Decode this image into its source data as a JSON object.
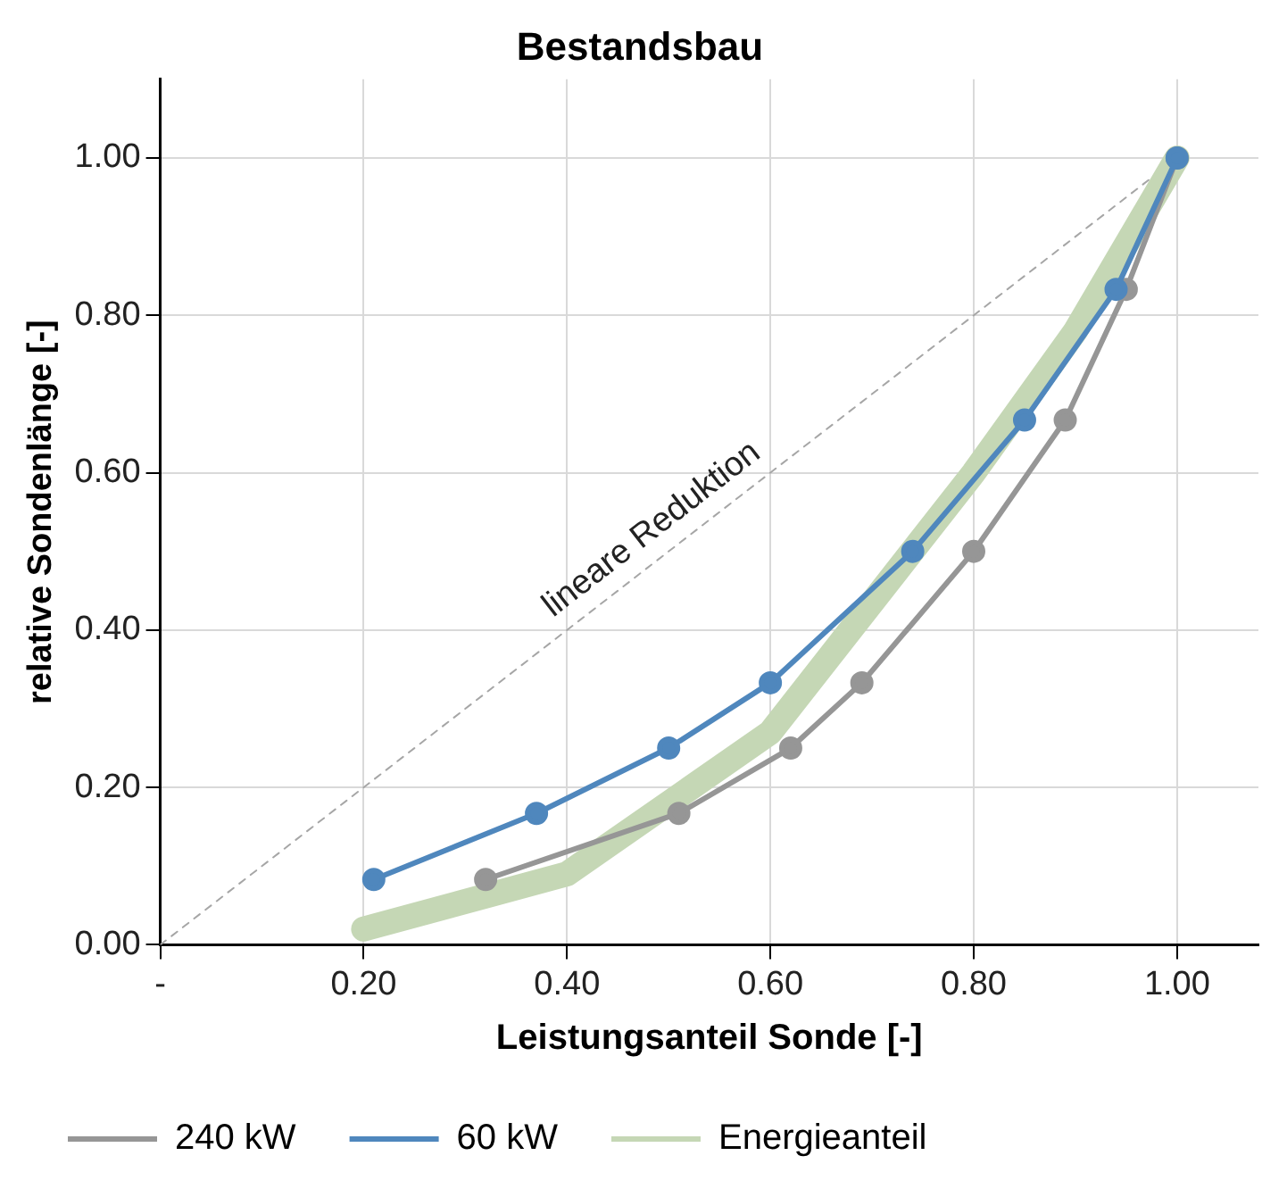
{
  "chart_data": {
    "type": "line",
    "title": "Bestandsbau",
    "xlabel": "Leistungsanteil Sonde [-]",
    "ylabel": "relative Sondenlänge [-]",
    "xlim": [
      0,
      1.08
    ],
    "xticks": [
      {
        "value": 0,
        "label": "-"
      },
      {
        "value": 0.2,
        "label": "0.20"
      },
      {
        "value": 0.4,
        "label": "0.40"
      },
      {
        "value": 0.6,
        "label": "0.60"
      },
      {
        "value": 0.8,
        "label": "0.80"
      },
      {
        "value": 1,
        "label": "1.00"
      }
    ],
    "ylim": [
      0,
      1.1
    ],
    "yticks": [
      {
        "value": 0,
        "label": "0.00"
      },
      {
        "value": 0.2,
        "label": "0.20"
      },
      {
        "value": 0.4,
        "label": "0.40"
      },
      {
        "value": 0.6,
        "label": "0.60"
      },
      {
        "value": 0.8,
        "label": "0.80"
      },
      {
        "value": 1,
        "label": "1.00"
      }
    ],
    "grid": true,
    "legend": "bottom",
    "marker": "circle",
    "series": [
      {
        "name": "240 kW",
        "color": "#969696",
        "x": [
          0.32,
          0.51,
          0.62,
          0.69,
          0.8,
          0.89,
          0.95,
          1.0
        ],
        "values": [
          0.083,
          0.167,
          0.25,
          0.333,
          0.5,
          0.667,
          0.833,
          1.0
        ]
      },
      {
        "name": "60 kW",
        "color": "#4f87bd",
        "x": [
          0.21,
          0.37,
          0.5,
          0.6,
          0.74,
          0.85,
          0.94,
          1.0
        ],
        "values": [
          0.083,
          0.167,
          0.25,
          0.333,
          0.5,
          0.667,
          0.833,
          1.0
        ]
      },
      {
        "name": "Energieanteil",
        "color": "#c5d7b5",
        "marker": "none",
        "x": [
          0.2,
          0.4,
          0.6,
          0.8,
          0.9,
          1.0
        ],
        "values": [
          0.02,
          0.09,
          0.27,
          0.6,
          0.78,
          1.0
        ]
      },
      {
        "color": "#a6a6a6",
        "marker": "none",
        "line_style": "dashed",
        "x": [
          0,
          1
        ],
        "values": [
          0,
          1
        ]
      }
    ],
    "annotations": [
      {
        "text": "lineare Reduktion",
        "x": 0.5,
        "y": 0.5
      }
    ]
  }
}
